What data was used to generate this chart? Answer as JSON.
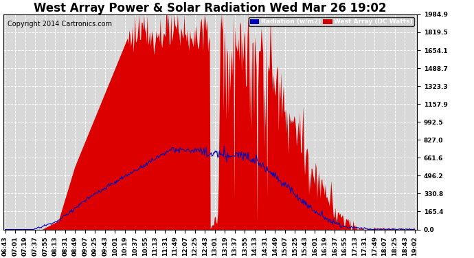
{
  "title": "West Array Power & Solar Radiation Wed Mar 26 19:02",
  "copyright": "Copyright 2014 Cartronics.com",
  "legend_radiation": "Radiation (w/m2)",
  "legend_west": "West Array (DC Watts)",
  "legend_radiation_bg": "#0000bb",
  "legend_west_bg": "#cc0000",
  "ymax": 1984.9,
  "ymin": 0.0,
  "yticks": [
    0.0,
    165.4,
    330.8,
    496.2,
    661.6,
    827.0,
    992.5,
    1157.9,
    1323.3,
    1488.7,
    1654.1,
    1819.5,
    1984.9
  ],
  "ytick_labels": [
    "0.0",
    "165.4",
    "330.8",
    "496.2",
    "661.6",
    "827.0",
    "992.5",
    "1157.9",
    "1323.3",
    "1488.7",
    "1654.1",
    "1819.5",
    "1984.9"
  ],
  "xtick_labels": [
    "06:43",
    "07:01",
    "07:19",
    "07:37",
    "07:55",
    "08:13",
    "08:31",
    "08:49",
    "09:07",
    "09:25",
    "09:43",
    "10:01",
    "10:19",
    "10:37",
    "10:55",
    "11:13",
    "11:31",
    "11:49",
    "12:07",
    "12:25",
    "12:43",
    "13:01",
    "13:19",
    "13:37",
    "13:55",
    "14:13",
    "14:31",
    "14:49",
    "15:07",
    "15:25",
    "15:43",
    "16:01",
    "16:19",
    "16:37",
    "16:55",
    "17:13",
    "17:31",
    "17:49",
    "18:07",
    "18:25",
    "18:43",
    "19:02"
  ],
  "background_color": "#ffffff",
  "plot_bg_color": "#d8d8d8",
  "grid_color": "#ffffff",
  "red_color": "#dd0000",
  "blue_color": "#0000bb",
  "title_fontsize": 12,
  "tick_fontsize": 6.5,
  "copyright_fontsize": 7
}
